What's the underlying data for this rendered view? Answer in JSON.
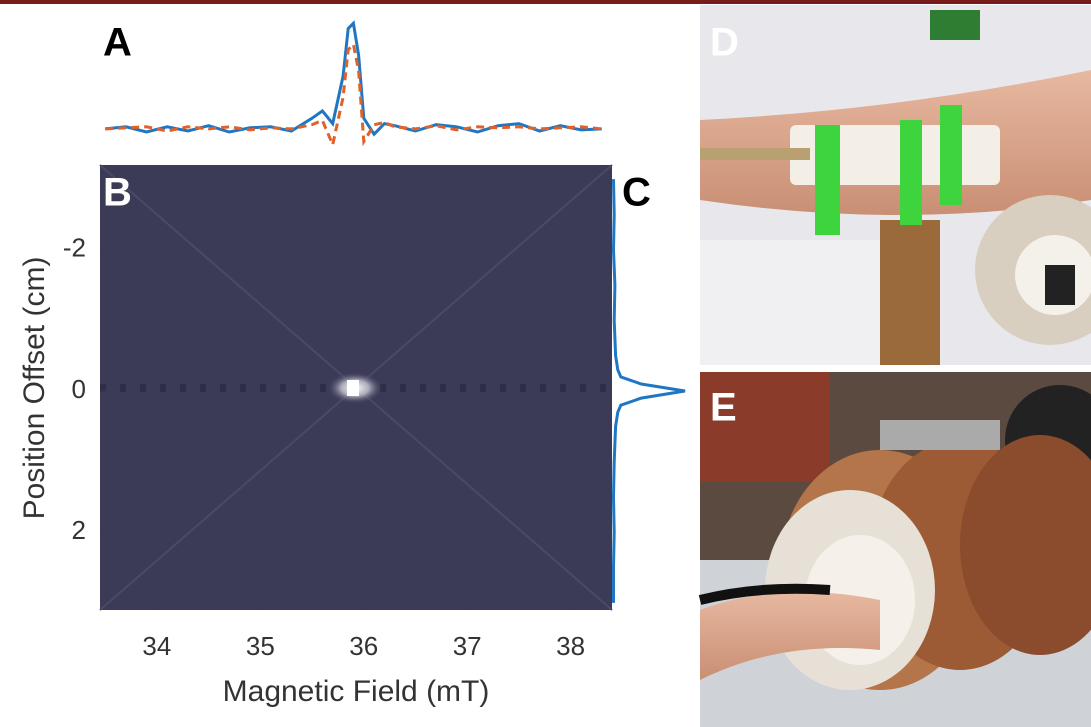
{
  "chart_data": {
    "type": "heatmap",
    "panel_labels": [
      "A",
      "B",
      "C",
      "D",
      "E"
    ],
    "xlabel": "Magnetic Field (mT)",
    "ylabel": "Position Offset (cm)",
    "xlim": [
      33.45,
      38.4
    ],
    "xticks": [
      34,
      35,
      36,
      37,
      38
    ],
    "ylim": [
      -3.2,
      3.1
    ],
    "y_inverted": true,
    "yticks": [
      -2,
      0,
      2
    ],
    "spectrum": {
      "ylim": [
        -0.2,
        1.05
      ],
      "x": [
        33.5,
        33.7,
        33.9,
        34.1,
        34.3,
        34.5,
        34.7,
        34.9,
        35.1,
        35.3,
        35.5,
        35.6,
        35.7,
        35.8,
        35.85,
        35.9,
        35.95,
        36.0,
        36.1,
        36.2,
        36.3,
        36.5,
        36.7,
        36.9,
        37.1,
        37.3,
        37.5,
        37.7,
        37.9,
        38.1,
        38.3
      ],
      "series": [
        {
          "color": "#1f77c4",
          "dashed": false,
          "values": [
            0,
            0.02,
            -0.03,
            0.02,
            -0.02,
            0.03,
            -0.03,
            0.01,
            0.02,
            -0.02,
            0.1,
            0.17,
            0.05,
            0.5,
            0.95,
            1,
            0.7,
            0.1,
            -0.05,
            0.05,
            0.03,
            -0.02,
            0.04,
            0.02,
            -0.03,
            0.03,
            0.05,
            -0.02,
            0.03,
            -0.01,
            0
          ]
        },
        {
          "color": "#e0612a",
          "dashed": true,
          "values": [
            0,
            0.01,
            0.02,
            -0.02,
            0.02,
            0,
            0.02,
            -0.01,
            0.01,
            0,
            0.04,
            0.08,
            -0.15,
            0.3,
            0.75,
            0.8,
            0.55,
            -0.12,
            0.04,
            0.06,
            0.02,
            0,
            0.03,
            -0.01,
            0.02,
            0.01,
            0.02,
            0,
            0.01,
            0.02,
            0
          ]
        }
      ]
    },
    "profile": {
      "color": "#1f77c4",
      "xlim": [
        0,
        1
      ],
      "y": [
        -3,
        -2.5,
        -2,
        -1.5,
        -1,
        -0.5,
        -0.3,
        -0.2,
        -0.1,
        0,
        0.1,
        0.2,
        0.3,
        0.5,
        1,
        1.5,
        2,
        2.5,
        3
      ],
      "values": [
        0.02,
        0.03,
        0.02,
        0.04,
        0.03,
        0.05,
        0.08,
        0.12,
        0.4,
        1,
        0.4,
        0.12,
        0.08,
        0.05,
        0.03,
        0.02,
        0.03,
        0.02,
        0.02
      ]
    }
  }
}
